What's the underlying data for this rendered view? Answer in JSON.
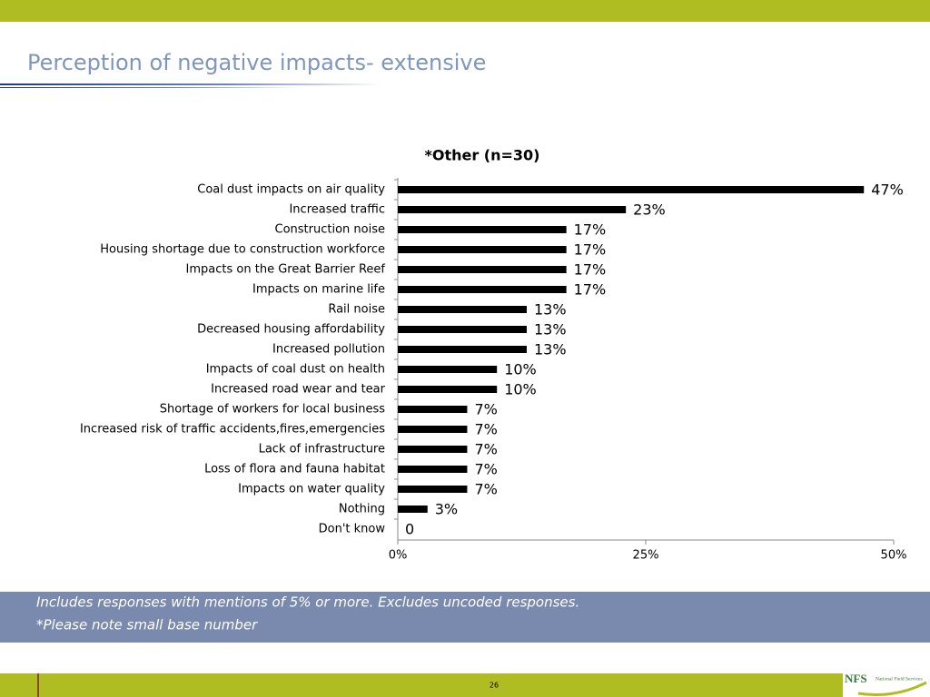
{
  "header": {
    "title": "Perception of negative impacts- extensive"
  },
  "chart_data": {
    "type": "barh",
    "title": "*Other (n=30)",
    "categories": [
      "Coal dust impacts on air quality",
      "Increased traffic",
      "Construction noise",
      "Housing shortage due to construction workforce",
      "Impacts on the Great Barrier Reef",
      "Impacts on marine life",
      "Rail noise",
      "Decreased housing affordability",
      "Increased pollution",
      "Impacts of coal dust on health",
      "Increased road wear and tear",
      "Shortage of workers for local business",
      "Increased risk of traffic accidents,fires,emergencies",
      "Lack of infrastructure",
      "Loss of flora and fauna habitat",
      "Impacts on water quality",
      "Nothing",
      "Don't know"
    ],
    "values": [
      47,
      23,
      17,
      17,
      17,
      17,
      13,
      13,
      13,
      10,
      10,
      7,
      7,
      7,
      7,
      7,
      3,
      0
    ],
    "value_labels": [
      "47%",
      "23%",
      "17%",
      "17%",
      "17%",
      "17%",
      "13%",
      "13%",
      "13%",
      "10%",
      "10%",
      "7%",
      "7%",
      "7%",
      "7%",
      "7%",
      "3%",
      "0"
    ],
    "color": "#000000",
    "xlim": [
      0,
      50
    ],
    "xticks": [
      {
        "value": 0,
        "label": "0%"
      },
      {
        "value": 25,
        "label": "25%"
      },
      {
        "value": 50,
        "label": "50%"
      }
    ]
  },
  "footer": {
    "notes": [
      "Includes responses with mentions of 5% or more. Excludes uncoded responses.",
      "*Please note small base number"
    ],
    "page_number": "26",
    "logo": "NFS",
    "logo_text": "National Field Services"
  }
}
